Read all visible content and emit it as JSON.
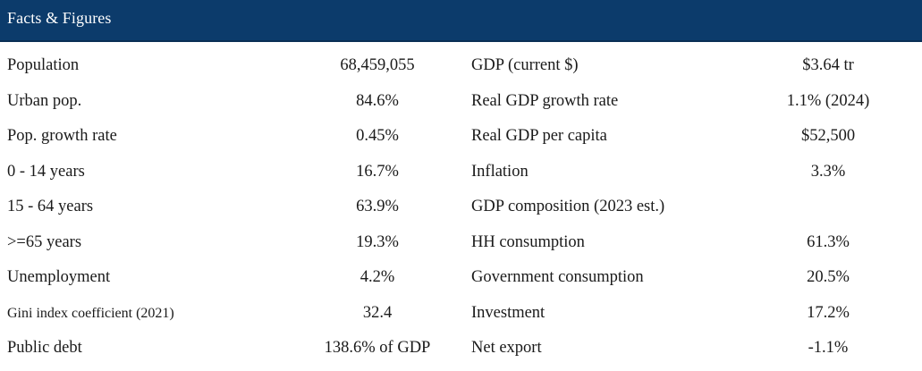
{
  "header": {
    "title": "Facts & Figures",
    "background": "#0c3b6b"
  },
  "rows": [
    {
      "left_label": "Population",
      "left_value": "68,459,055",
      "right_label": "GDP (current $)",
      "right_value": "$3.64 tr"
    },
    {
      "left_label": "Urban pop.",
      "left_value": "84.6%",
      "right_label": "Real GDP growth rate",
      "right_value": "1.1% (2024)"
    },
    {
      "left_label": "Pop. growth rate",
      "left_value": "0.45%",
      "right_label": "Real GDP per capita",
      "right_value": "$52,500"
    },
    {
      "left_label": "0 - 14 years",
      "left_value": "16.7%",
      "right_label": "Inflation",
      "right_value": "3.3%"
    },
    {
      "left_label": "15 - 64 years",
      "left_value": "63.9%",
      "right_label": "GDP composition (2023 est.)",
      "right_value": ""
    },
    {
      "left_label": ">=65 years",
      "left_value": "19.3%",
      "right_label": "HH consumption",
      "right_value": "61.3%"
    },
    {
      "left_label": "Unemployment",
      "left_value": "4.2%",
      "right_label": "Government consumption",
      "right_value": "20.5%"
    },
    {
      "left_label": "Gini index coefficient (2021)",
      "left_value": "32.4",
      "right_label": "Investment",
      "right_value": "17.2%"
    },
    {
      "left_label": "Public debt",
      "left_value": "138.6% of GDP",
      "right_label": "Net export",
      "right_value": "-1.1%"
    }
  ]
}
